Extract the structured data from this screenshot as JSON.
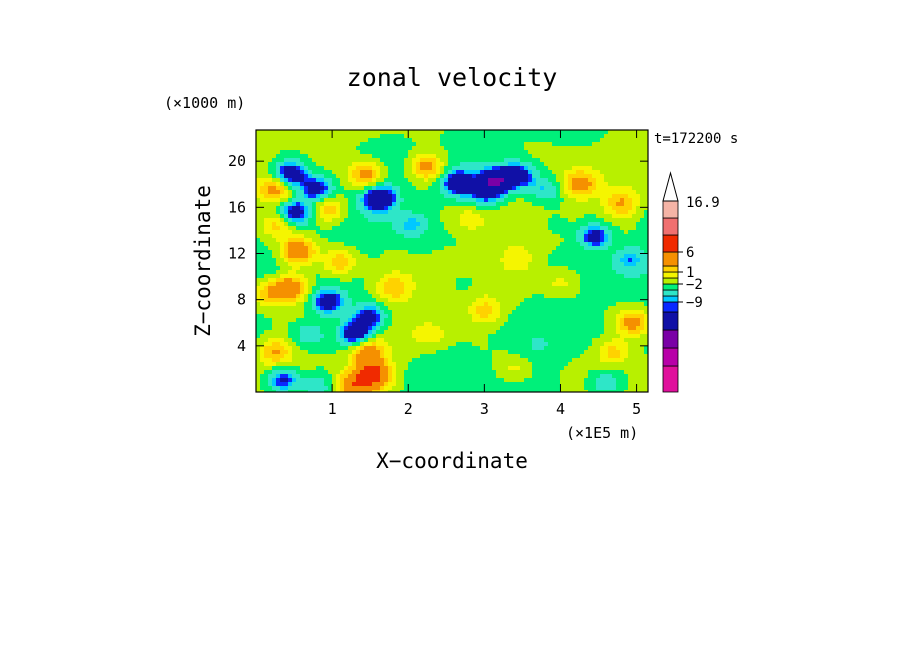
{
  "chart_data": {
    "type": "heatmap",
    "title": "zonal velocity",
    "xlabel": "X−coordinate",
    "ylabel": "Z−coordinate",
    "x_unit_label": "(×1E5 m)",
    "y_unit_label": "(×1000 m)",
    "time_label": "t=172200 s",
    "xlim": [
      0,
      5.15
    ],
    "ylim": [
      0,
      22.7
    ],
    "x_ticks": [
      {
        "value": 1,
        "label": "1"
      },
      {
        "value": 2,
        "label": "2"
      },
      {
        "value": 3,
        "label": "3"
      },
      {
        "value": 4,
        "label": "4"
      },
      {
        "value": 5,
        "label": "5"
      }
    ],
    "y_ticks": [
      {
        "value": 4,
        "label": "4"
      },
      {
        "value": 8,
        "label": "8"
      },
      {
        "value": 12,
        "label": "12"
      },
      {
        "value": 16,
        "label": "16"
      },
      {
        "value": 20,
        "label": "20"
      }
    ],
    "colorbar": {
      "max_label": "16.9",
      "labels": [
        {
          "level": 11,
          "text": "6"
        },
        {
          "level": 9,
          "text": "1"
        },
        {
          "level": 7,
          "text": "−2"
        },
        {
          "level": 4,
          "text": "−9"
        }
      ],
      "levels": [
        {
          "from": -16.9,
          "to": -12,
          "color": "#e0109c"
        },
        {
          "from": -12,
          "to": -9,
          "color": "#b800a8"
        },
        {
          "from": -9,
          "to": -6,
          "color": "#7a00a6"
        },
        {
          "from": -6,
          "to": -3,
          "color": "#1010a6"
        },
        {
          "from": -3,
          "to": -2.5,
          "color": "#0a28ff"
        },
        {
          "from": -2.5,
          "to": -2,
          "color": "#00c8ff"
        },
        {
          "from": -2,
          "to": -1,
          "color": "#2ee6c8"
        },
        {
          "from": -1,
          "to": 0,
          "color": "#00f07a"
        },
        {
          "from": 0,
          "to": 1,
          "color": "#b8f000"
        },
        {
          "from": 1,
          "to": 2,
          "color": "#f5f500"
        },
        {
          "from": 2,
          "to": 3,
          "color": "#ffd200"
        },
        {
          "from": 3,
          "to": 6,
          "color": "#f59000"
        },
        {
          "from": 6,
          "to": 9,
          "color": "#f02a00"
        },
        {
          "from": 9,
          "to": 12,
          "color": "#f07070"
        },
        {
          "from": 12,
          "to": 16.9,
          "color": "#f5b4a6"
        }
      ]
    },
    "features": [
      {
        "x": 1.55,
        "z": 1.5,
        "value": 7
      },
      {
        "x": 1.45,
        "z": 3.5,
        "value": 4
      },
      {
        "x": 1.3,
        "z": 0.6,
        "value": 5
      },
      {
        "x": 1.3,
        "z": 5.0,
        "value": -5
      },
      {
        "x": 1.5,
        "z": 6.5,
        "value": -4
      },
      {
        "x": 0.95,
        "z": 7.8,
        "value": -4
      },
      {
        "x": 0.45,
        "z": 9.0,
        "value": 5
      },
      {
        "x": 0.15,
        "z": 8.5,
        "value": 3
      },
      {
        "x": 0.55,
        "z": 12.2,
        "value": 5
      },
      {
        "x": 0.3,
        "z": 14.5,
        "value": 3
      },
      {
        "x": 0.45,
        "z": 18.9,
        "value": -5
      },
      {
        "x": 0.25,
        "z": 17.5,
        "value": 4
      },
      {
        "x": 0.8,
        "z": 17.6,
        "value": -4
      },
      {
        "x": 0.5,
        "z": 15.5,
        "value": -4
      },
      {
        "x": 0.95,
        "z": 15.8,
        "value": 3
      },
      {
        "x": 1.45,
        "z": 18.8,
        "value": 4
      },
      {
        "x": 1.62,
        "z": 16.8,
        "value": -5
      },
      {
        "x": 2.25,
        "z": 19.5,
        "value": 4
      },
      {
        "x": 2.05,
        "z": 14.5,
        "value": -2.2
      },
      {
        "x": 2.65,
        "z": 18.1,
        "value": -4
      },
      {
        "x": 3.15,
        "z": 18.3,
        "value": -5
      },
      {
        "x": 3.45,
        "z": 18.8,
        "value": -4
      },
      {
        "x": 3.0,
        "z": 17.2,
        "value": -2.8
      },
      {
        "x": 3.8,
        "z": 17.5,
        "value": -2.2
      },
      {
        "x": 4.25,
        "z": 18.0,
        "value": 4
      },
      {
        "x": 4.8,
        "z": 16.3,
        "value": 3
      },
      {
        "x": 4.45,
        "z": 13.5,
        "value": -4
      },
      {
        "x": 4.9,
        "z": 11.5,
        "value": -2.2
      },
      {
        "x": 4.95,
        "z": 6.0,
        "value": 4
      },
      {
        "x": 4.7,
        "z": 3.5,
        "value": 2.5
      },
      {
        "x": 4.6,
        "z": 0.8,
        "value": -2.2
      },
      {
        "x": 3.7,
        "z": 3.8,
        "value": -0.5
      },
      {
        "x": 3.0,
        "z": 7.0,
        "value": 2.5
      },
      {
        "x": 2.75,
        "z": 9.5,
        "value": -0.6
      },
      {
        "x": 3.45,
        "z": 11.5,
        "value": 1.5
      },
      {
        "x": 2.3,
        "z": 5.0,
        "value": 1.5
      },
      {
        "x": 1.8,
        "z": 9.0,
        "value": 2.5
      },
      {
        "x": 2.15,
        "z": 12.5,
        "value": -0.4
      },
      {
        "x": 1.1,
        "z": 11.2,
        "value": 3
      },
      {
        "x": 0.7,
        "z": 5.0,
        "value": -2.2
      },
      {
        "x": 0.25,
        "z": 3.5,
        "value": 3
      },
      {
        "x": 0.35,
        "z": 1.0,
        "value": -4
      },
      {
        "x": 0.8,
        "z": 0.5,
        "value": -2.2
      },
      {
        "x": 2.8,
        "z": 15.0,
        "value": 1.5
      },
      {
        "x": 4.0,
        "z": 9.5,
        "value": 1.5
      },
      {
        "x": 3.9,
        "z": 14.5,
        "value": -0.6
      },
      {
        "x": 3.4,
        "z": 2.0,
        "value": 1.5
      },
      {
        "x": 2.6,
        "z": 2.5,
        "value": -0.5
      }
    ]
  }
}
